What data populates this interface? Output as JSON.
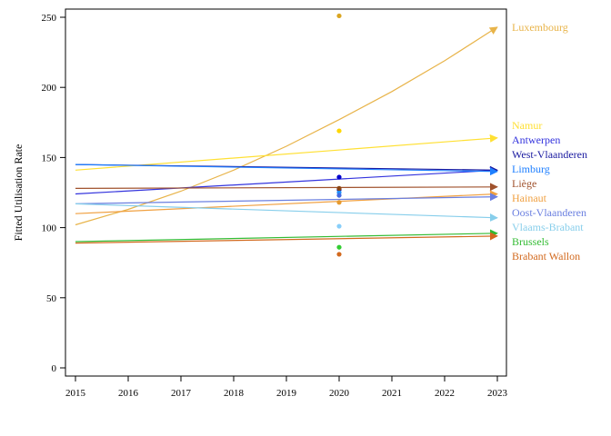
{
  "chart_data": {
    "type": "line",
    "title": "",
    "xlabel": "",
    "ylabel": "Fitted Utilisation Rate",
    "xlim": [
      2015,
      2023
    ],
    "ylim": [
      0,
      250
    ],
    "x_ticks": [
      2015,
      2016,
      2017,
      2018,
      2019,
      2020,
      2021,
      2022,
      2023
    ],
    "y_ticks": [
      0,
      50,
      100,
      150,
      200,
      250
    ],
    "grid": false,
    "legend": "right, labels at line ends",
    "observed_x": 2020,
    "series": [
      {
        "name": "Luxembourg",
        "color": "#E8B44A",
        "dot_color": "#DAA520",
        "x": [
          2015,
          2016,
          2017,
          2018,
          2019,
          2020,
          2021,
          2022,
          2023
        ],
        "y": [
          102,
          113,
          126,
          141,
          158,
          177,
          197,
          219,
          243
        ],
        "observed": 251
      },
      {
        "name": "Namur",
        "color": "#FFE033",
        "dot_color": "#FFD700",
        "x": [
          2015,
          2023
        ],
        "y": [
          141,
          164
        ],
        "observed": 169
      },
      {
        "name": "Antwerpen",
        "color": "#3333DD",
        "dot_color": "#0000CD",
        "x": [
          2015,
          2023
        ],
        "y": [
          124,
          141
        ],
        "observed": 136
      },
      {
        "name": "West-Vlaanderen",
        "color": "#1A1AA0",
        "dot_color": "#00008B",
        "x": [
          2015,
          2023
        ],
        "y": [
          145,
          141
        ],
        "observed": 127
      },
      {
        "name": "Limburg",
        "color": "#1E7FFF",
        "dot_color": "#1E90FF",
        "x": [
          2015,
          2023
        ],
        "y": [
          145,
          140
        ],
        "observed": 125
      },
      {
        "name": "Liège",
        "color": "#A0522D",
        "dot_color": "#8B4513",
        "x": [
          2015,
          2023
        ],
        "y": [
          128,
          129
        ],
        "observed": 128
      },
      {
        "name": "Hainaut",
        "color": "#F0A040",
        "dot_color": "#E69A2E",
        "x": [
          2015,
          2023
        ],
        "y": [
          110,
          124
        ],
        "observed": 118
      },
      {
        "name": "Oost-Vlaanderen",
        "color": "#6A7FE0",
        "dot_color": "#4169E1",
        "x": [
          2015,
          2023
        ],
        "y": [
          117,
          122
        ],
        "observed": 123
      },
      {
        "name": "Vlaams-Brabant",
        "color": "#87CEEB",
        "dot_color": "#87CEFA",
        "x": [
          2015,
          2023
        ],
        "y": [
          117,
          107
        ],
        "observed": 101
      },
      {
        "name": "Brussels",
        "color": "#33BB33",
        "dot_color": "#32CD32",
        "x": [
          2015,
          2023
        ],
        "y": [
          90,
          96
        ],
        "observed": 86
      },
      {
        "name": "Brabant Wallon",
        "color": "#D2691E",
        "dot_color": "#D2691E",
        "x": [
          2015,
          2023
        ],
        "y": [
          89,
          94
        ],
        "observed": 81
      }
    ]
  }
}
